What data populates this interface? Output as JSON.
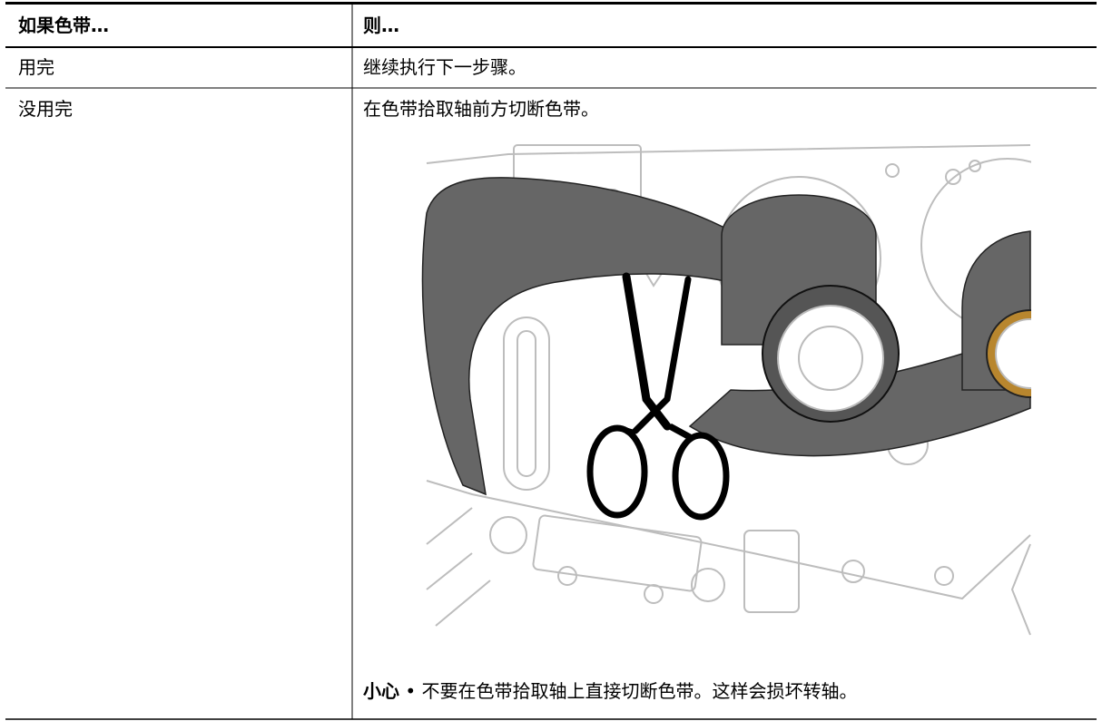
{
  "table": {
    "header": [
      "如果色带…",
      "则…"
    ],
    "rows": [
      [
        "用完",
        "继续执行下一步骤。"
      ],
      [
        "没用完",
        "在色带拾取轴前方切断色带。"
      ]
    ]
  },
  "note": {
    "label": "小心",
    "text": "• 不要在色带拾取轴上直接切断色带。这样会损坏转轴。"
  }
}
